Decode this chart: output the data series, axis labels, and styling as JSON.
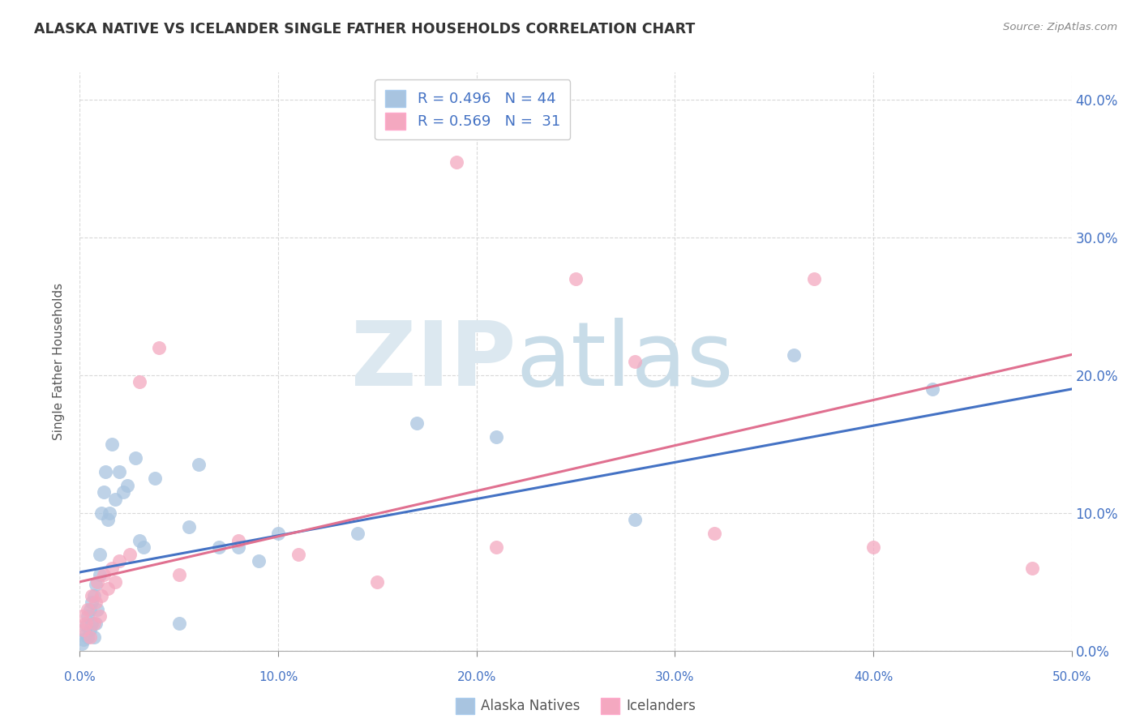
{
  "title": "ALASKA NATIVE VS ICELANDER SINGLE FATHER HOUSEHOLDS CORRELATION CHART",
  "source": "Source: ZipAtlas.com",
  "ylabel": "Single Father Households",
  "xlim": [
    0,
    0.5
  ],
  "ylim": [
    0,
    0.42
  ],
  "blue_R": 0.496,
  "blue_N": 44,
  "pink_R": 0.569,
  "pink_N": 31,
  "blue_color": "#a8c4e0",
  "pink_color": "#f4a8c0",
  "blue_line_color": "#4472c4",
  "pink_line_color": "#e07090",
  "background_color": "#ffffff",
  "grid_color": "#d0d0d0",
  "blue_points_x": [
    0.001,
    0.002,
    0.003,
    0.003,
    0.004,
    0.004,
    0.005,
    0.005,
    0.006,
    0.006,
    0.007,
    0.007,
    0.008,
    0.008,
    0.009,
    0.01,
    0.01,
    0.011,
    0.012,
    0.013,
    0.014,
    0.015,
    0.016,
    0.018,
    0.02,
    0.022,
    0.024,
    0.028,
    0.03,
    0.032,
    0.038,
    0.05,
    0.055,
    0.06,
    0.07,
    0.08,
    0.09,
    0.1,
    0.14,
    0.17,
    0.21,
    0.28,
    0.36,
    0.43
  ],
  "blue_points_y": [
    0.005,
    0.008,
    0.012,
    0.018,
    0.01,
    0.025,
    0.015,
    0.03,
    0.02,
    0.035,
    0.01,
    0.04,
    0.02,
    0.048,
    0.03,
    0.055,
    0.07,
    0.1,
    0.115,
    0.13,
    0.095,
    0.1,
    0.15,
    0.11,
    0.13,
    0.115,
    0.12,
    0.14,
    0.08,
    0.075,
    0.125,
    0.02,
    0.09,
    0.135,
    0.075,
    0.075,
    0.065,
    0.085,
    0.085,
    0.165,
    0.155,
    0.095,
    0.215,
    0.19
  ],
  "pink_points_x": [
    0.001,
    0.002,
    0.003,
    0.004,
    0.005,
    0.006,
    0.007,
    0.008,
    0.009,
    0.01,
    0.011,
    0.012,
    0.014,
    0.016,
    0.018,
    0.02,
    0.025,
    0.03,
    0.04,
    0.05,
    0.08,
    0.11,
    0.15,
    0.19,
    0.21,
    0.25,
    0.28,
    0.32,
    0.37,
    0.4,
    0.48
  ],
  "pink_points_y": [
    0.025,
    0.015,
    0.02,
    0.03,
    0.01,
    0.04,
    0.02,
    0.035,
    0.05,
    0.025,
    0.04,
    0.055,
    0.045,
    0.06,
    0.05,
    0.065,
    0.07,
    0.195,
    0.22,
    0.055,
    0.08,
    0.07,
    0.05,
    0.355,
    0.075,
    0.27,
    0.21,
    0.085,
    0.27,
    0.075,
    0.06
  ],
  "blue_line_x0": 0.0,
  "blue_line_y0": 0.057,
  "blue_line_x1": 0.5,
  "blue_line_y1": 0.19,
  "pink_line_x0": 0.0,
  "pink_line_y0": 0.05,
  "pink_line_x1": 0.5,
  "pink_line_y1": 0.215
}
